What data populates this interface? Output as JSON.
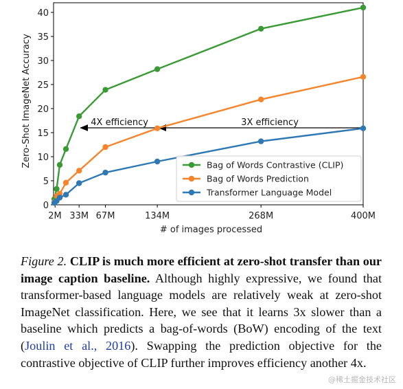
{
  "chart_data": {
    "type": "line",
    "xlabel": "# of images processed",
    "ylabel": "Zero-Shot ImageNet Accuracy",
    "xlim": [
      0,
      400
    ],
    "ylim": [
      0,
      42
    ],
    "x_ticks": [
      2,
      33,
      67,
      134,
      268,
      400
    ],
    "x_tick_labels": [
      "2M",
      "33M",
      "67M",
      "134M",
      "268M",
      "400M"
    ],
    "y_ticks": [
      0,
      5,
      10,
      15,
      20,
      25,
      30,
      35,
      40
    ],
    "y_tick_labels": [
      "0",
      "5",
      "10",
      "15",
      "20",
      "25",
      "30",
      "35",
      "40"
    ],
    "grid": false,
    "legend_position": "lower-right",
    "series": [
      {
        "name": "Bag of Words Contrastive (CLIP)",
        "color": "#3a9a35",
        "x": [
          1,
          4,
          8,
          16,
          33,
          67,
          134,
          268,
          400
        ],
        "y": [
          1.2,
          3.3,
          8.3,
          11.6,
          18.4,
          23.9,
          28.2,
          36.6,
          41.0
        ]
      },
      {
        "name": "Bag of Words Prediction",
        "color": "#f5842a",
        "x": [
          1,
          4,
          8,
          16,
          33,
          67,
          134,
          268,
          400
        ],
        "y": [
          0.5,
          1.8,
          2.3,
          4.6,
          7.1,
          12.0,
          15.9,
          21.9,
          26.6
        ]
      },
      {
        "name": "Transformer Language Model",
        "color": "#2e78b4",
        "x": [
          1,
          4,
          8,
          16,
          33,
          67,
          134,
          268,
          400
        ],
        "y": [
          0.4,
          0.8,
          1.5,
          2.1,
          4.5,
          6.7,
          9.0,
          13.2,
          15.9
        ]
      }
    ],
    "annotations": [
      {
        "text": "4X efficiency",
        "x_start": 134,
        "x_end": 33,
        "y": 16
      },
      {
        "text": "3X efficiency",
        "x_start": 400,
        "x_end": 134,
        "y": 16
      }
    ]
  },
  "caption": {
    "figure_label": "Figure 2.",
    "bold": "CLIP is much more efficient at zero-shot transfer than our image caption baseline.",
    "body_1": "Although highly expressive, we found that transformer-based language models are relatively weak at zero-shot ImageNet classification. Here, we see that it learns 3x slower than a baseline which predicts a bag-of-words (BoW) encoding of the text (",
    "citation": "Joulin et al., 2016",
    "body_2": "). Swapping the prediction objective for the contrastive objective of CLIP further improves efficiency another 4x."
  },
  "watermark": "@稀土掘金技术社区"
}
